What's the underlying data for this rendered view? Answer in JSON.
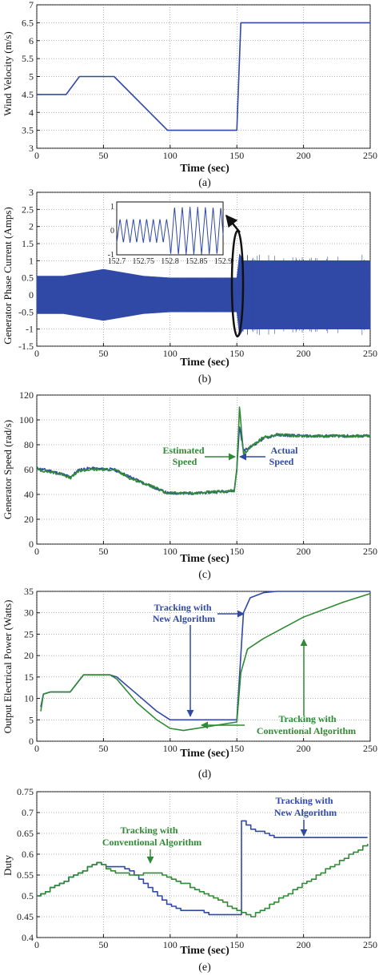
{
  "colors": {
    "blue": "#3049a6",
    "green": "#2f8a34",
    "black": "#111111"
  },
  "chart_data": [
    {
      "id": "a",
      "type": "line",
      "panel_label": "(a)",
      "xlabel": "Time (sec)",
      "ylabel": "Wind Velocity (m/s)",
      "xlim": [
        0,
        250
      ],
      "ylim": [
        3,
        7
      ],
      "xticks": [
        "0",
        "50",
        "100",
        "150",
        "200",
        "250"
      ],
      "yticks": [
        "3",
        "3.5",
        "4",
        "4.5",
        "5",
        "5.5",
        "6",
        "6.5",
        "7"
      ],
      "grid": true,
      "series": [
        {
          "color": "blue",
          "x": [
            0,
            22,
            32,
            58,
            98,
            150,
            153,
            250
          ],
          "y": [
            4.5,
            4.5,
            5.0,
            5.0,
            3.5,
            3.5,
            6.5,
            6.5
          ]
        }
      ]
    },
    {
      "id": "b",
      "type": "line",
      "panel_label": "(b)",
      "xlabel": "Time (sec)",
      "ylabel": "Generator Phase Current (Amps)",
      "xlim": [
        0,
        250
      ],
      "ylim": [
        -1.5,
        3
      ],
      "xticks": [
        "0",
        "50",
        "100",
        "150",
        "200",
        "250"
      ],
      "yticks": [
        "-1.5",
        "-1",
        "-0.5",
        "0",
        "0.5",
        "1",
        "1.5",
        "2",
        "2.5",
        "3"
      ],
      "grid": true,
      "envelope": {
        "color": "blue",
        "x": [
          0,
          20,
          50,
          80,
          100,
          150,
          152,
          155,
          250
        ],
        "upper": [
          0.55,
          0.55,
          0.75,
          0.55,
          0.5,
          0.5,
          1.2,
          1.0,
          1.0
        ],
        "lower": [
          -0.55,
          -0.55,
          -0.75,
          -0.55,
          -0.5,
          -0.5,
          -1.2,
          -1.0,
          -1.0
        ]
      },
      "inset": {
        "xticks": [
          "152.7",
          "152.75",
          "152.8",
          "152.85",
          "152.9"
        ],
        "yticks": [
          "-1",
          "0",
          "1"
        ],
        "xlim": [
          152.7,
          152.9
        ],
        "ylim": [
          -1,
          1.2
        ],
        "switch_x": 152.8,
        "amplitude_before": 0.5,
        "amplitude_after": 1.0
      }
    },
    {
      "id": "c",
      "type": "line",
      "panel_label": "(c)",
      "xlabel": "Time (sec)",
      "ylabel": "Generator Speed (rad/s)",
      "xlim": [
        0,
        250
      ],
      "ylim": [
        0,
        120
      ],
      "xticks": [
        "0",
        "50",
        "100",
        "150",
        "200",
        "250"
      ],
      "yticks": [
        "0",
        "20",
        "40",
        "60",
        "80",
        "100",
        "120"
      ],
      "grid": true,
      "series": [
        {
          "name": "Actual Speed",
          "color": "blue",
          "x": [
            0,
            10,
            20,
            25,
            32,
            40,
            58,
            70,
            85,
            98,
            120,
            148,
            150,
            152,
            155,
            160,
            170,
            180,
            200,
            250
          ],
          "y": [
            61,
            59,
            56,
            54,
            60,
            61,
            60,
            54,
            47,
            41,
            41,
            43,
            60,
            95,
            75,
            78,
            85,
            88,
            87,
            87
          ]
        },
        {
          "name": "Estimated Speed",
          "color": "green",
          "x": [
            0,
            10,
            20,
            25,
            32,
            40,
            58,
            70,
            85,
            98,
            120,
            148,
            150,
            152,
            155,
            160,
            170,
            180,
            200,
            250
          ],
          "y": [
            60,
            58,
            56,
            53,
            59,
            60,
            60,
            53,
            47,
            41,
            41,
            43,
            60,
            110,
            72,
            78,
            86,
            88,
            87,
            87
          ]
        }
      ],
      "annotations": [
        {
          "text": [
            "Estimated",
            "Speed"
          ],
          "color": "green"
        },
        {
          "text": [
            "Actual",
            "Speed"
          ],
          "color": "blue"
        }
      ]
    },
    {
      "id": "d",
      "type": "line",
      "panel_label": "(d)",
      "xlabel": "Time (sec)",
      "ylabel": "Output Electrical Power (Watts)",
      "xlim": [
        0,
        250
      ],
      "ylim": [
        0,
        35
      ],
      "xticks": [
        "0",
        "50",
        "100",
        "150",
        "200",
        "250"
      ],
      "yticks": [
        "0",
        "5",
        "10",
        "15",
        "20",
        "25",
        "30",
        "35"
      ],
      "grid": true,
      "series": [
        {
          "name": "Tracking with New Algorithm",
          "color": "blue",
          "x": [
            3,
            5,
            10,
            25,
            35,
            55,
            60,
            75,
            90,
            100,
            150,
            152,
            155,
            160,
            170,
            180,
            250
          ],
          "y": [
            8,
            11,
            11.5,
            11.5,
            15.5,
            15.5,
            15,
            11,
            7,
            5,
            5,
            15,
            30,
            33.5,
            34.7,
            35,
            35
          ]
        },
        {
          "name": "Tracking with Conventional Algorithm",
          "color": "green",
          "x": [
            3,
            5,
            10,
            25,
            35,
            55,
            60,
            75,
            90,
            100,
            110,
            130,
            150,
            153,
            158,
            170,
            200,
            230,
            250
          ],
          "y": [
            7,
            11,
            11.5,
            11.5,
            15.5,
            15.5,
            14.5,
            9,
            5,
            3,
            2.5,
            3.5,
            4.5,
            16,
            21.5,
            24,
            29,
            32.5,
            34.5
          ]
        }
      ],
      "annotations": [
        {
          "text": [
            "Tracking with",
            "New Algorithm"
          ],
          "color": "blue"
        },
        {
          "text": [
            "Tracking with",
            "Conventional Algorithm"
          ],
          "color": "green"
        }
      ]
    },
    {
      "id": "e",
      "type": "line",
      "panel_label": "(e)",
      "xlabel": "Time (sec)",
      "ylabel": "Duty",
      "xlim": [
        0,
        250
      ],
      "ylim": [
        0.4,
        0.75
      ],
      "xticks": [
        "0",
        "50",
        "100",
        "150",
        "200",
        "250"
      ],
      "yticks": [
        "0.4",
        "0.45",
        "0.5",
        "0.55",
        "0.6",
        "0.65",
        "0.7",
        "0.75"
      ],
      "grid": true,
      "series": [
        {
          "name": "Tracking with New Algorithm",
          "color": "blue",
          "x": [
            0,
            45,
            50,
            60,
            70,
            80,
            90,
            100,
            110,
            120,
            130,
            140,
            152,
            153,
            160,
            170,
            180,
            190,
            250
          ],
          "y": [
            0.5,
            0.58,
            0.57,
            0.57,
            0.56,
            0.53,
            0.5,
            0.475,
            0.465,
            0.465,
            0.455,
            0.455,
            0.455,
            0.68,
            0.66,
            0.65,
            0.64,
            0.64,
            0.64
          ]
        },
        {
          "name": "Tracking with Conventional Algorithm",
          "color": "green",
          "x": [
            0,
            45,
            55,
            70,
            90,
            110,
            130,
            150,
            160,
            200,
            250
          ],
          "y": [
            0.5,
            0.58,
            0.56,
            0.55,
            0.555,
            0.53,
            0.5,
            0.465,
            0.45,
            0.53,
            0.63
          ]
        }
      ],
      "annotations": [
        {
          "text": [
            "Tracking with",
            "Conventional Algorithm"
          ],
          "color": "green"
        },
        {
          "text": [
            "Tracking with",
            "New Algorithm"
          ],
          "color": "blue"
        }
      ]
    }
  ]
}
